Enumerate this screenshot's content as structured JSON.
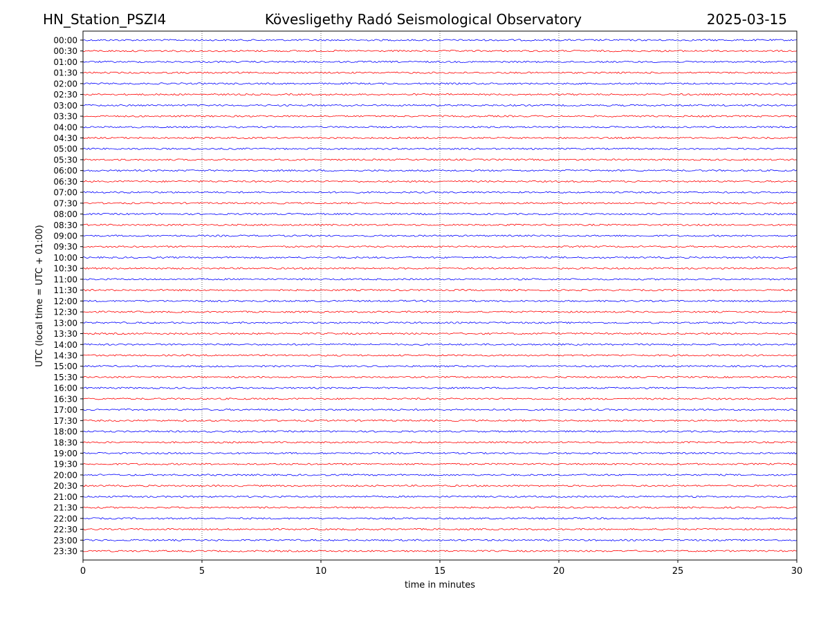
{
  "chart_data": {
    "type": "helicorder",
    "title": "Kövesligethy Radó Seismological Observatory",
    "station": "HN_Station_PSZI4",
    "date": "2025-03-15",
    "xlabel": "time in minutes",
    "ylabel": "UTC (local time = UTC + 01:00)",
    "categories": [
      "00:00",
      "00:30",
      "01:00",
      "01:30",
      "02:00",
      "02:30",
      "03:00",
      "03:30",
      "04:00",
      "04:30",
      "05:00",
      "05:30",
      "06:00",
      "06:30",
      "07:00",
      "07:30",
      "08:00",
      "08:30",
      "09:00",
      "09:30",
      "10:00",
      "10:30",
      "11:00",
      "11:30",
      "12:00",
      "12:30",
      "13:00",
      "13:30",
      "14:00",
      "14:30",
      "15:00",
      "15:30",
      "16:00",
      "16:30",
      "17:00",
      "17:30",
      "18:00",
      "18:30",
      "19:00",
      "19:30",
      "20:00",
      "20:30",
      "21:00",
      "21:30",
      "22:00",
      "22:30",
      "23:00",
      "23:30"
    ],
    "xlim": [
      0,
      30
    ],
    "xticks": [
      0,
      5,
      10,
      15,
      20,
      25,
      30
    ],
    "colors": [
      "#0000ff",
      "#ff0000"
    ],
    "grid": true
  }
}
